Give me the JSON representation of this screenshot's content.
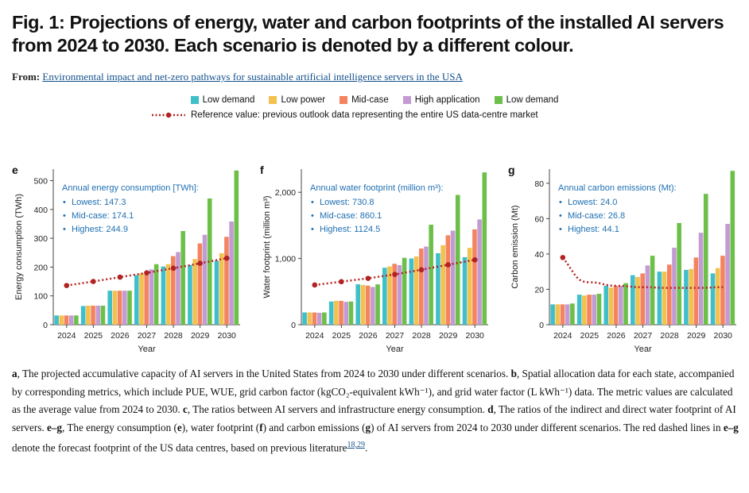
{
  "figure": {
    "title": "Fig. 1: Projections of energy, water and carbon footprints of the installed AI servers from 2024 to 2030. Each scenario is denoted by a different colour.",
    "from_label": "From:",
    "from_link": "Environmental impact and net-zero pathways for sustainable artificial intelligence servers in the USA"
  },
  "legend": {
    "items": [
      {
        "label": "Low demand",
        "color": "#3fbfca"
      },
      {
        "label": "Low power",
        "color": "#f2c14e"
      },
      {
        "label": "Mid-case",
        "color": "#f4845f"
      },
      {
        "label": "High application",
        "color": "#c39bd3"
      },
      {
        "label": "Low demand",
        "color": "#6cc04a"
      }
    ],
    "reference_label": "Reference value: previous outlook data representing the entire US data-centre market",
    "reference_color": "#b22222"
  },
  "chart_data": [
    {
      "panel": "e",
      "type": "bar",
      "xlabel": "Year",
      "ylabel": "Energy consumption (TWh)",
      "categories": [
        "2024",
        "2025",
        "2026",
        "2027",
        "2028",
        "2029",
        "2030"
      ],
      "ylim": [
        0,
        540
      ],
      "yticks": [
        0,
        100,
        200,
        300,
        400,
        500
      ],
      "yticklabels": [
        "0",
        "100",
        "200",
        "300",
        "400",
        "500"
      ],
      "series": [
        {
          "name": "Low demand",
          "values": [
            32,
            65,
            118,
            172,
            202,
            207,
            222
          ]
        },
        {
          "name": "Low power",
          "values": [
            32,
            66,
            118,
            178,
            210,
            228,
            248
          ]
        },
        {
          "name": "Mid-case",
          "values": [
            32,
            66,
            118,
            185,
            238,
            282,
            305
          ]
        },
        {
          "name": "High application",
          "values": [
            32,
            66,
            118,
            192,
            252,
            312,
            358
          ]
        },
        {
          "name": "Low demand",
          "values": [
            32,
            66,
            118,
            210,
            325,
            438,
            535
          ]
        }
      ],
      "reference": [
        136,
        150,
        165,
        180,
        196,
        213,
        231
      ],
      "annotation": {
        "title": "Annual energy consumption [TWh]:",
        "lines": [
          "Lowest: 147.3",
          "Mid-case: 174.1",
          "Highest: 244.9"
        ]
      }
    },
    {
      "panel": "f",
      "type": "bar",
      "xlabel": "Year",
      "ylabel": "Water footprint (million m³)",
      "categories": [
        "2024",
        "2025",
        "2026",
        "2027",
        "2028",
        "2029",
        "2030"
      ],
      "ylim": [
        0,
        2350
      ],
      "yticks": [
        0,
        1000,
        2000
      ],
      "yticklabels": [
        "0",
        "1,000",
        "2,000"
      ],
      "series": [
        {
          "name": "Low demand",
          "values": [
            185,
            350,
            610,
            860,
            1000,
            1080,
            1020
          ]
        },
        {
          "name": "Low power",
          "values": [
            185,
            360,
            600,
            880,
            1030,
            1200,
            1160
          ]
        },
        {
          "name": "Mid-case",
          "values": [
            185,
            360,
            590,
            920,
            1150,
            1350,
            1440
          ]
        },
        {
          "name": "High application",
          "values": [
            180,
            345,
            570,
            900,
            1180,
            1420,
            1590
          ]
        },
        {
          "name": "Low demand",
          "values": [
            185,
            350,
            610,
            1010,
            1510,
            1960,
            2300
          ]
        }
      ],
      "reference": [
        600,
        650,
        700,
        760,
        830,
        905,
        980
      ],
      "annotation": {
        "title": "Annual water footprint (million m³):",
        "lines": [
          "Lowest: 730.8",
          "Mid-case: 860.1",
          "Highest: 1124.5"
        ]
      }
    },
    {
      "panel": "g",
      "type": "bar",
      "xlabel": "Year",
      "ylabel": "Carbon emission (Mt)",
      "categories": [
        "2024",
        "2025",
        "2026",
        "2027",
        "2028",
        "2029",
        "2030"
      ],
      "ylim": [
        0,
        88
      ],
      "yticks": [
        0,
        20,
        40,
        60,
        80
      ],
      "yticklabels": [
        "0",
        "20",
        "40",
        "60",
        "80"
      ],
      "series": [
        {
          "name": "Low demand",
          "values": [
            11.5,
            17,
            22,
            28,
            30,
            31,
            29
          ]
        },
        {
          "name": "Low power",
          "values": [
            11.5,
            16.5,
            21,
            27,
            30,
            31.5,
            32
          ]
        },
        {
          "name": "Mid-case",
          "values": [
            11.5,
            17,
            22,
            29,
            34,
            38,
            39
          ]
        },
        {
          "name": "High application",
          "values": [
            11.5,
            17,
            22,
            33.5,
            43.5,
            52,
            57
          ]
        },
        {
          "name": "Low demand",
          "values": [
            12,
            17.5,
            23.5,
            39,
            57.5,
            74,
            87
          ]
        }
      ],
      "reference": [
        38,
        24,
        22,
        21.2,
        20.8,
        20.8,
        21.2
      ],
      "reference_curved": true,
      "annotation": {
        "title": "Annual carbon emissions (Mt):",
        "lines": [
          "Lowest: 24.0",
          "Mid-case: 26.8",
          "Highest: 44.1"
        ]
      }
    }
  ],
  "caption": {
    "parts": [
      {
        "b": "a"
      },
      {
        "t": ", The projected accumulative capacity of AI servers in the United States from 2024 to 2030 under different scenarios. "
      },
      {
        "b": "b"
      },
      {
        "t": ", Spatial allocation data for each state, accompanied by corresponding metrics, which include PUE, WUE, grid carbon factor (kgCO₂-equivalent kWh⁻¹), and grid water factor (L kWh⁻¹) data. The metric values are calculated as the average value from 2024 to 2030. "
      },
      {
        "b": "c"
      },
      {
        "t": ", The ratios between AI servers and infrastructure energy consumption. "
      },
      {
        "b": "d"
      },
      {
        "t": ", The ratios of the indirect and direct water footprint of AI servers. "
      },
      {
        "b": "e–g"
      },
      {
        "t": ", The energy consumption ("
      },
      {
        "b": "e"
      },
      {
        "t": "), water footprint ("
      },
      {
        "b": "f"
      },
      {
        "t": ") and carbon emissions ("
      },
      {
        "b": "g"
      },
      {
        "t": ") of AI servers from 2024 to 2030 under different scenarios. The red dashed lines in "
      },
      {
        "b": "e–g"
      },
      {
        "t": " denote the forecast footprint of the US data centres, based on previous literature"
      },
      {
        "ref": "18,29"
      },
      {
        "t": "."
      }
    ]
  }
}
